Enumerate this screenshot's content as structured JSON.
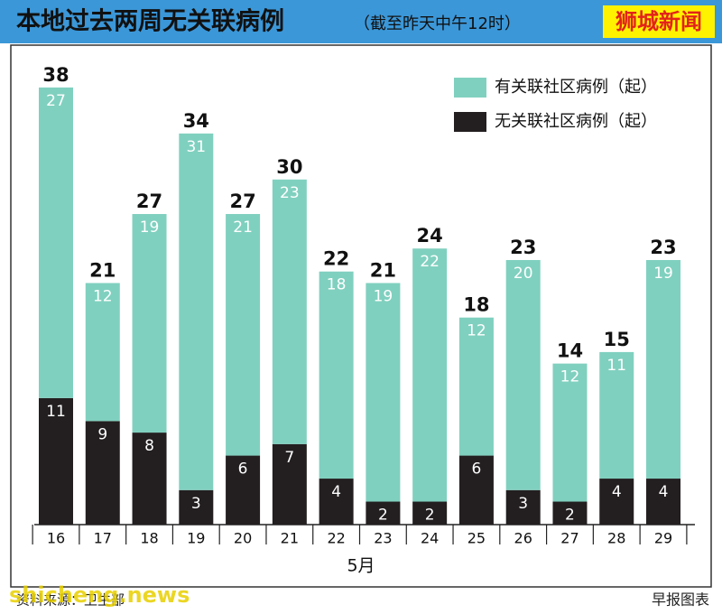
{
  "chart_data": {
    "type": "stacked-bar",
    "title": "本地过去两周无关联病例",
    "subtitle": "（截至昨天中午12时）",
    "brand": "狮城新闻",
    "x_label": "5月",
    "categories": [
      "16",
      "17",
      "18",
      "19",
      "20",
      "21",
      "22",
      "23",
      "24",
      "25",
      "26",
      "27",
      "28",
      "29"
    ],
    "series": [
      {
        "name": "有关联社区病例（起）",
        "color": "#80d0bf",
        "values": [
          27,
          12,
          19,
          31,
          21,
          23,
          18,
          19,
          22,
          12,
          20,
          12,
          11,
          19
        ]
      },
      {
        "name": "无关联社区病例（起）",
        "color": "#231f20",
        "values": [
          11,
          9,
          8,
          3,
          6,
          7,
          4,
          2,
          2,
          6,
          3,
          2,
          4,
          4
        ]
      }
    ],
    "totals": [
      38,
      21,
      27,
      34,
      27,
      30,
      22,
      21,
      24,
      18,
      23,
      14,
      15,
      23
    ],
    "ylim": [
      0,
      40
    ],
    "source": "资料来源：卫生部",
    "credit": "早报图表",
    "watermark": "shicheng.news"
  }
}
